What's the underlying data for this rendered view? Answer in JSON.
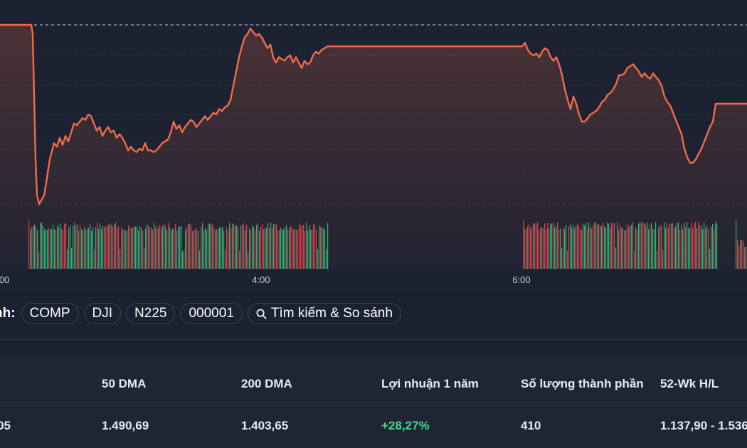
{
  "chart_data": {
    "type": "line",
    "line_color": "#f26b4a",
    "up_color": "#2fb37a",
    "down_color": "#d9414e",
    "x_ticks": [
      "00",
      "4:00",
      "6:00"
    ],
    "ylim": [
      0,
      100
    ],
    "ref_line": 100,
    "price": [
      [
        0,
        100
      ],
      [
        4,
        100
      ],
      [
        8,
        100
      ],
      [
        12,
        100
      ],
      [
        16,
        100
      ],
      [
        20,
        100
      ],
      [
        24,
        100
      ],
      [
        28,
        100
      ],
      [
        32,
        100
      ],
      [
        36,
        100
      ],
      [
        40,
        100
      ],
      [
        44,
        100
      ],
      [
        46,
        95
      ],
      [
        48,
        60
      ],
      [
        50,
        25
      ],
      [
        52,
        5
      ],
      [
        55,
        0
      ],
      [
        58,
        2
      ],
      [
        62,
        5
      ],
      [
        65,
        12
      ],
      [
        68,
        20
      ],
      [
        70,
        25
      ],
      [
        72,
        28
      ],
      [
        76,
        34
      ],
      [
        80,
        32
      ],
      [
        84,
        37
      ],
      [
        88,
        33
      ],
      [
        92,
        38
      ],
      [
        96,
        35
      ],
      [
        100,
        40
      ],
      [
        104,
        45
      ],
      [
        108,
        44
      ],
      [
        112,
        46
      ],
      [
        116,
        48
      ],
      [
        120,
        47
      ],
      [
        124,
        50
      ],
      [
        128,
        49
      ],
      [
        132,
        45
      ],
      [
        136,
        41
      ],
      [
        140,
        43
      ],
      [
        144,
        38
      ],
      [
        148,
        41
      ],
      [
        152,
        43
      ],
      [
        156,
        40
      ],
      [
        160,
        41
      ],
      [
        164,
        37
      ],
      [
        168,
        39
      ],
      [
        172,
        37
      ],
      [
        176,
        34
      ],
      [
        180,
        30
      ],
      [
        184,
        32
      ],
      [
        188,
        30
      ],
      [
        192,
        29
      ],
      [
        196,
        31
      ],
      [
        200,
        30
      ],
      [
        204,
        34
      ],
      [
        208,
        30
      ],
      [
        212,
        30
      ],
      [
        216,
        29
      ],
      [
        220,
        30
      ],
      [
        224,
        32
      ],
      [
        228,
        34
      ],
      [
        232,
        35
      ],
      [
        236,
        36
      ],
      [
        240,
        40
      ],
      [
        244,
        46
      ],
      [
        248,
        42
      ],
      [
        252,
        44
      ],
      [
        256,
        40
      ],
      [
        260,
        43
      ],
      [
        264,
        45
      ],
      [
        268,
        47
      ],
      [
        272,
        46
      ],
      [
        276,
        43
      ],
      [
        280,
        45
      ],
      [
        284,
        47
      ],
      [
        288,
        49
      ],
      [
        292,
        47
      ],
      [
        296,
        49
      ],
      [
        300,
        51
      ],
      [
        304,
        50
      ],
      [
        308,
        53
      ],
      [
        312,
        52
      ],
      [
        316,
        54
      ],
      [
        320,
        55
      ],
      [
        324,
        58
      ],
      [
        328,
        66
      ],
      [
        332,
        74
      ],
      [
        336,
        82
      ],
      [
        340,
        88
      ],
      [
        344,
        93
      ],
      [
        348,
        95
      ],
      [
        352,
        98
      ],
      [
        356,
        96
      ],
      [
        360,
        94
      ],
      [
        364,
        95
      ],
      [
        368,
        93
      ],
      [
        372,
        90
      ],
      [
        376,
        87
      ],
      [
        380,
        89
      ],
      [
        384,
        82
      ],
      [
        388,
        79
      ],
      [
        392,
        82
      ],
      [
        396,
        81
      ],
      [
        400,
        80
      ],
      [
        404,
        82
      ],
      [
        408,
        83
      ],
      [
        412,
        79
      ],
      [
        416,
        82
      ],
      [
        420,
        79
      ],
      [
        424,
        76
      ],
      [
        428,
        80
      ],
      [
        432,
        78
      ],
      [
        436,
        79
      ],
      [
        440,
        83
      ],
      [
        444,
        85
      ],
      [
        448,
        84
      ],
      [
        452,
        86
      ],
      [
        456,
        87
      ],
      [
        460,
        88
      ],
      [
        464,
        88
      ],
      [
        470,
        88
      ],
      [
        480,
        88
      ],
      [
        490,
        88
      ],
      [
        500,
        88
      ],
      [
        510,
        88
      ],
      [
        520,
        88
      ],
      [
        530,
        88
      ],
      [
        540,
        88
      ],
      [
        550,
        88
      ],
      [
        560,
        88
      ],
      [
        570,
        88
      ],
      [
        580,
        88
      ],
      [
        590,
        88
      ],
      [
        600,
        88
      ],
      [
        610,
        88
      ],
      [
        620,
        88
      ],
      [
        630,
        88
      ],
      [
        640,
        88
      ],
      [
        650,
        88
      ],
      [
        660,
        88
      ],
      [
        670,
        88
      ],
      [
        680,
        88
      ],
      [
        690,
        88
      ],
      [
        700,
        88
      ],
      [
        710,
        88
      ],
      [
        720,
        88
      ],
      [
        730,
        88
      ],
      [
        734,
        88
      ],
      [
        738,
        90
      ],
      [
        742,
        86
      ],
      [
        746,
        84
      ],
      [
        750,
        83
      ],
      [
        754,
        84
      ],
      [
        758,
        82
      ],
      [
        762,
        85
      ],
      [
        766,
        87
      ],
      [
        770,
        86
      ],
      [
        774,
        82
      ],
      [
        778,
        80
      ],
      [
        782,
        82
      ],
      [
        786,
        78
      ],
      [
        790,
        72
      ],
      [
        794,
        64
      ],
      [
        798,
        58
      ],
      [
        802,
        53
      ],
      [
        806,
        60
      ],
      [
        810,
        56
      ],
      [
        814,
        50
      ],
      [
        818,
        46
      ],
      [
        822,
        46
      ],
      [
        826,
        48
      ],
      [
        830,
        50
      ],
      [
        834,
        51
      ],
      [
        838,
        52
      ],
      [
        842,
        54
      ],
      [
        846,
        57
      ],
      [
        850,
        58
      ],
      [
        854,
        61
      ],
      [
        858,
        62
      ],
      [
        862,
        64
      ],
      [
        866,
        67
      ],
      [
        870,
        72
      ],
      [
        874,
        72
      ],
      [
        878,
        73
      ],
      [
        882,
        76
      ],
      [
        886,
        77
      ],
      [
        890,
        78
      ],
      [
        894,
        76
      ],
      [
        898,
        74
      ],
      [
        902,
        71
      ],
      [
        906,
        73
      ],
      [
        910,
        71
      ],
      [
        914,
        70
      ],
      [
        918,
        73
      ],
      [
        922,
        71
      ],
      [
        926,
        69
      ],
      [
        930,
        66
      ],
      [
        934,
        60
      ],
      [
        938,
        57
      ],
      [
        942,
        55
      ],
      [
        946,
        51
      ],
      [
        950,
        47
      ],
      [
        954,
        43
      ],
      [
        958,
        39
      ],
      [
        962,
        31
      ],
      [
        966,
        26
      ],
      [
        970,
        23
      ],
      [
        974,
        23
      ],
      [
        978,
        25
      ],
      [
        982,
        28
      ],
      [
        986,
        31
      ],
      [
        990,
        35
      ],
      [
        994,
        39
      ],
      [
        998,
        43
      ],
      [
        1002,
        46
      ],
      [
        1006,
        56
      ],
      [
        1010,
        56
      ],
      [
        1016,
        56
      ],
      [
        1022,
        56
      ],
      [
        1028,
        56
      ],
      [
        1034,
        56
      ],
      [
        1040,
        56
      ],
      [
        1046,
        56
      ],
      [
        1050,
        56
      ]
    ],
    "volume_sessions": [
      {
        "from": 40,
        "to": 460,
        "base": 0.78
      },
      {
        "from": 735,
        "to": 1007,
        "base": 0.8
      },
      {
        "from": 1034,
        "to": 1050,
        "base": 0.45
      }
    ]
  },
  "compare": {
    "label": "nh:",
    "chips": [
      "COMP",
      "DJI",
      "N225",
      "000001"
    ],
    "search_label": "Tìm kiếm & So sánh"
  },
  "stats": {
    "headers": [
      "50 DMA",
      "200 DMA",
      "Lợi nhuận 1 năm",
      "Số lượng thành phần",
      "52-Wk H/L"
    ],
    "first_value": "05",
    "values": [
      "1.490,69",
      "1.403,65",
      "+28,27%",
      "410",
      "1.137,90 - 1.536"
    ],
    "positive_color": "#3ddc84"
  }
}
